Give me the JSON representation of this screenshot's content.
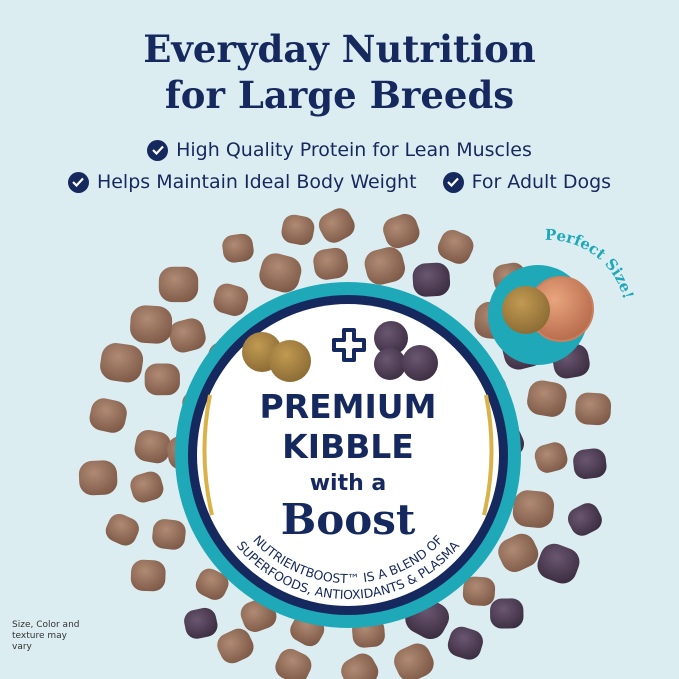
{
  "title_lines": [
    "Everyday Nutrition",
    "for Large Breeds"
  ],
  "bullets": [
    "High Quality Protein for Lean Muscles",
    "Helps Maintain Ideal Body Weight",
    "For Adult Dogs"
  ],
  "badge": {
    "line1": "PREMIUM",
    "line2": "KIBBLE",
    "line3": "with a",
    "line4": "Boost",
    "arc1": "NUTRIENTBOOST™ IS A BLEND OF",
    "arc2": "SUPERFOODS, ANTIOXIDANTS & PLASMA"
  },
  "size_callout": "Perfect Size!",
  "note": "Size, Color and texture may vary",
  "colors": {
    "navy": "#16295e",
    "teal": "#1fa8b8",
    "background": "#dcedf2",
    "kibble": "#9a7460",
    "boost_kibble": "#4a3a4e",
    "gold": "#d9b24a"
  },
  "icons": [
    "check-circle-icon",
    "plus-icon",
    "penny-image",
    "kibble-image"
  ]
}
